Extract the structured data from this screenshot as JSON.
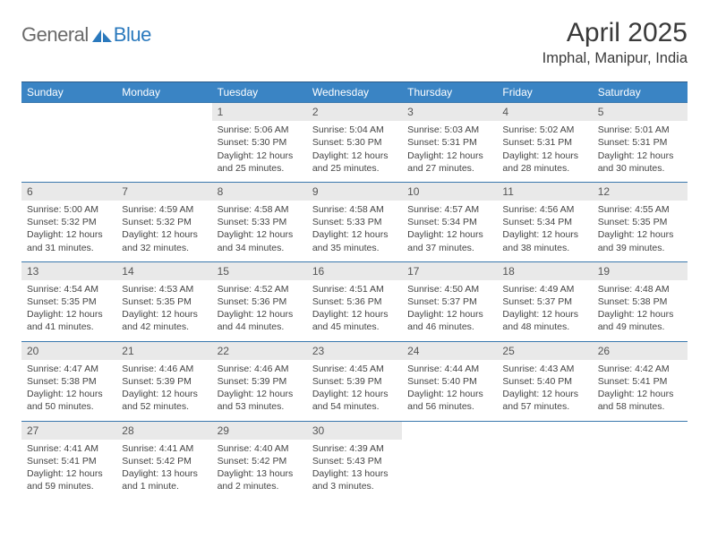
{
  "brand": {
    "part1": "General",
    "part2": "Blue"
  },
  "title": "April 2025",
  "location": "Imphal, Manipur, India",
  "header_bg": "#3a84c4",
  "header_border": "#2a5a88",
  "row_border": "#3a78ad",
  "daynum_bg": "#e9e9e9",
  "columns": [
    "Sunday",
    "Monday",
    "Tuesday",
    "Wednesday",
    "Thursday",
    "Friday",
    "Saturday"
  ],
  "weeks": [
    [
      null,
      null,
      {
        "d": "1",
        "sr": "5:06 AM",
        "ss": "5:30 PM",
        "dl": "12 hours and 25 minutes."
      },
      {
        "d": "2",
        "sr": "5:04 AM",
        "ss": "5:30 PM",
        "dl": "12 hours and 25 minutes."
      },
      {
        "d": "3",
        "sr": "5:03 AM",
        "ss": "5:31 PM",
        "dl": "12 hours and 27 minutes."
      },
      {
        "d": "4",
        "sr": "5:02 AM",
        "ss": "5:31 PM",
        "dl": "12 hours and 28 minutes."
      },
      {
        "d": "5",
        "sr": "5:01 AM",
        "ss": "5:31 PM",
        "dl": "12 hours and 30 minutes."
      }
    ],
    [
      {
        "d": "6",
        "sr": "5:00 AM",
        "ss": "5:32 PM",
        "dl": "12 hours and 31 minutes."
      },
      {
        "d": "7",
        "sr": "4:59 AM",
        "ss": "5:32 PM",
        "dl": "12 hours and 32 minutes."
      },
      {
        "d": "8",
        "sr": "4:58 AM",
        "ss": "5:33 PM",
        "dl": "12 hours and 34 minutes."
      },
      {
        "d": "9",
        "sr": "4:58 AM",
        "ss": "5:33 PM",
        "dl": "12 hours and 35 minutes."
      },
      {
        "d": "10",
        "sr": "4:57 AM",
        "ss": "5:34 PM",
        "dl": "12 hours and 37 minutes."
      },
      {
        "d": "11",
        "sr": "4:56 AM",
        "ss": "5:34 PM",
        "dl": "12 hours and 38 minutes."
      },
      {
        "d": "12",
        "sr": "4:55 AM",
        "ss": "5:35 PM",
        "dl": "12 hours and 39 minutes."
      }
    ],
    [
      {
        "d": "13",
        "sr": "4:54 AM",
        "ss": "5:35 PM",
        "dl": "12 hours and 41 minutes."
      },
      {
        "d": "14",
        "sr": "4:53 AM",
        "ss": "5:35 PM",
        "dl": "12 hours and 42 minutes."
      },
      {
        "d": "15",
        "sr": "4:52 AM",
        "ss": "5:36 PM",
        "dl": "12 hours and 44 minutes."
      },
      {
        "d": "16",
        "sr": "4:51 AM",
        "ss": "5:36 PM",
        "dl": "12 hours and 45 minutes."
      },
      {
        "d": "17",
        "sr": "4:50 AM",
        "ss": "5:37 PM",
        "dl": "12 hours and 46 minutes."
      },
      {
        "d": "18",
        "sr": "4:49 AM",
        "ss": "5:37 PM",
        "dl": "12 hours and 48 minutes."
      },
      {
        "d": "19",
        "sr": "4:48 AM",
        "ss": "5:38 PM",
        "dl": "12 hours and 49 minutes."
      }
    ],
    [
      {
        "d": "20",
        "sr": "4:47 AM",
        "ss": "5:38 PM",
        "dl": "12 hours and 50 minutes."
      },
      {
        "d": "21",
        "sr": "4:46 AM",
        "ss": "5:39 PM",
        "dl": "12 hours and 52 minutes."
      },
      {
        "d": "22",
        "sr": "4:46 AM",
        "ss": "5:39 PM",
        "dl": "12 hours and 53 minutes."
      },
      {
        "d": "23",
        "sr": "4:45 AM",
        "ss": "5:39 PM",
        "dl": "12 hours and 54 minutes."
      },
      {
        "d": "24",
        "sr": "4:44 AM",
        "ss": "5:40 PM",
        "dl": "12 hours and 56 minutes."
      },
      {
        "d": "25",
        "sr": "4:43 AM",
        "ss": "5:40 PM",
        "dl": "12 hours and 57 minutes."
      },
      {
        "d": "26",
        "sr": "4:42 AM",
        "ss": "5:41 PM",
        "dl": "12 hours and 58 minutes."
      }
    ],
    [
      {
        "d": "27",
        "sr": "4:41 AM",
        "ss": "5:41 PM",
        "dl": "12 hours and 59 minutes."
      },
      {
        "d": "28",
        "sr": "4:41 AM",
        "ss": "5:42 PM",
        "dl": "13 hours and 1 minute."
      },
      {
        "d": "29",
        "sr": "4:40 AM",
        "ss": "5:42 PM",
        "dl": "13 hours and 2 minutes."
      },
      {
        "d": "30",
        "sr": "4:39 AM",
        "ss": "5:43 PM",
        "dl": "13 hours and 3 minutes."
      },
      null,
      null,
      null
    ]
  ],
  "labels": {
    "sunrise": "Sunrise: ",
    "sunset": "Sunset: ",
    "daylight": "Daylight: "
  }
}
